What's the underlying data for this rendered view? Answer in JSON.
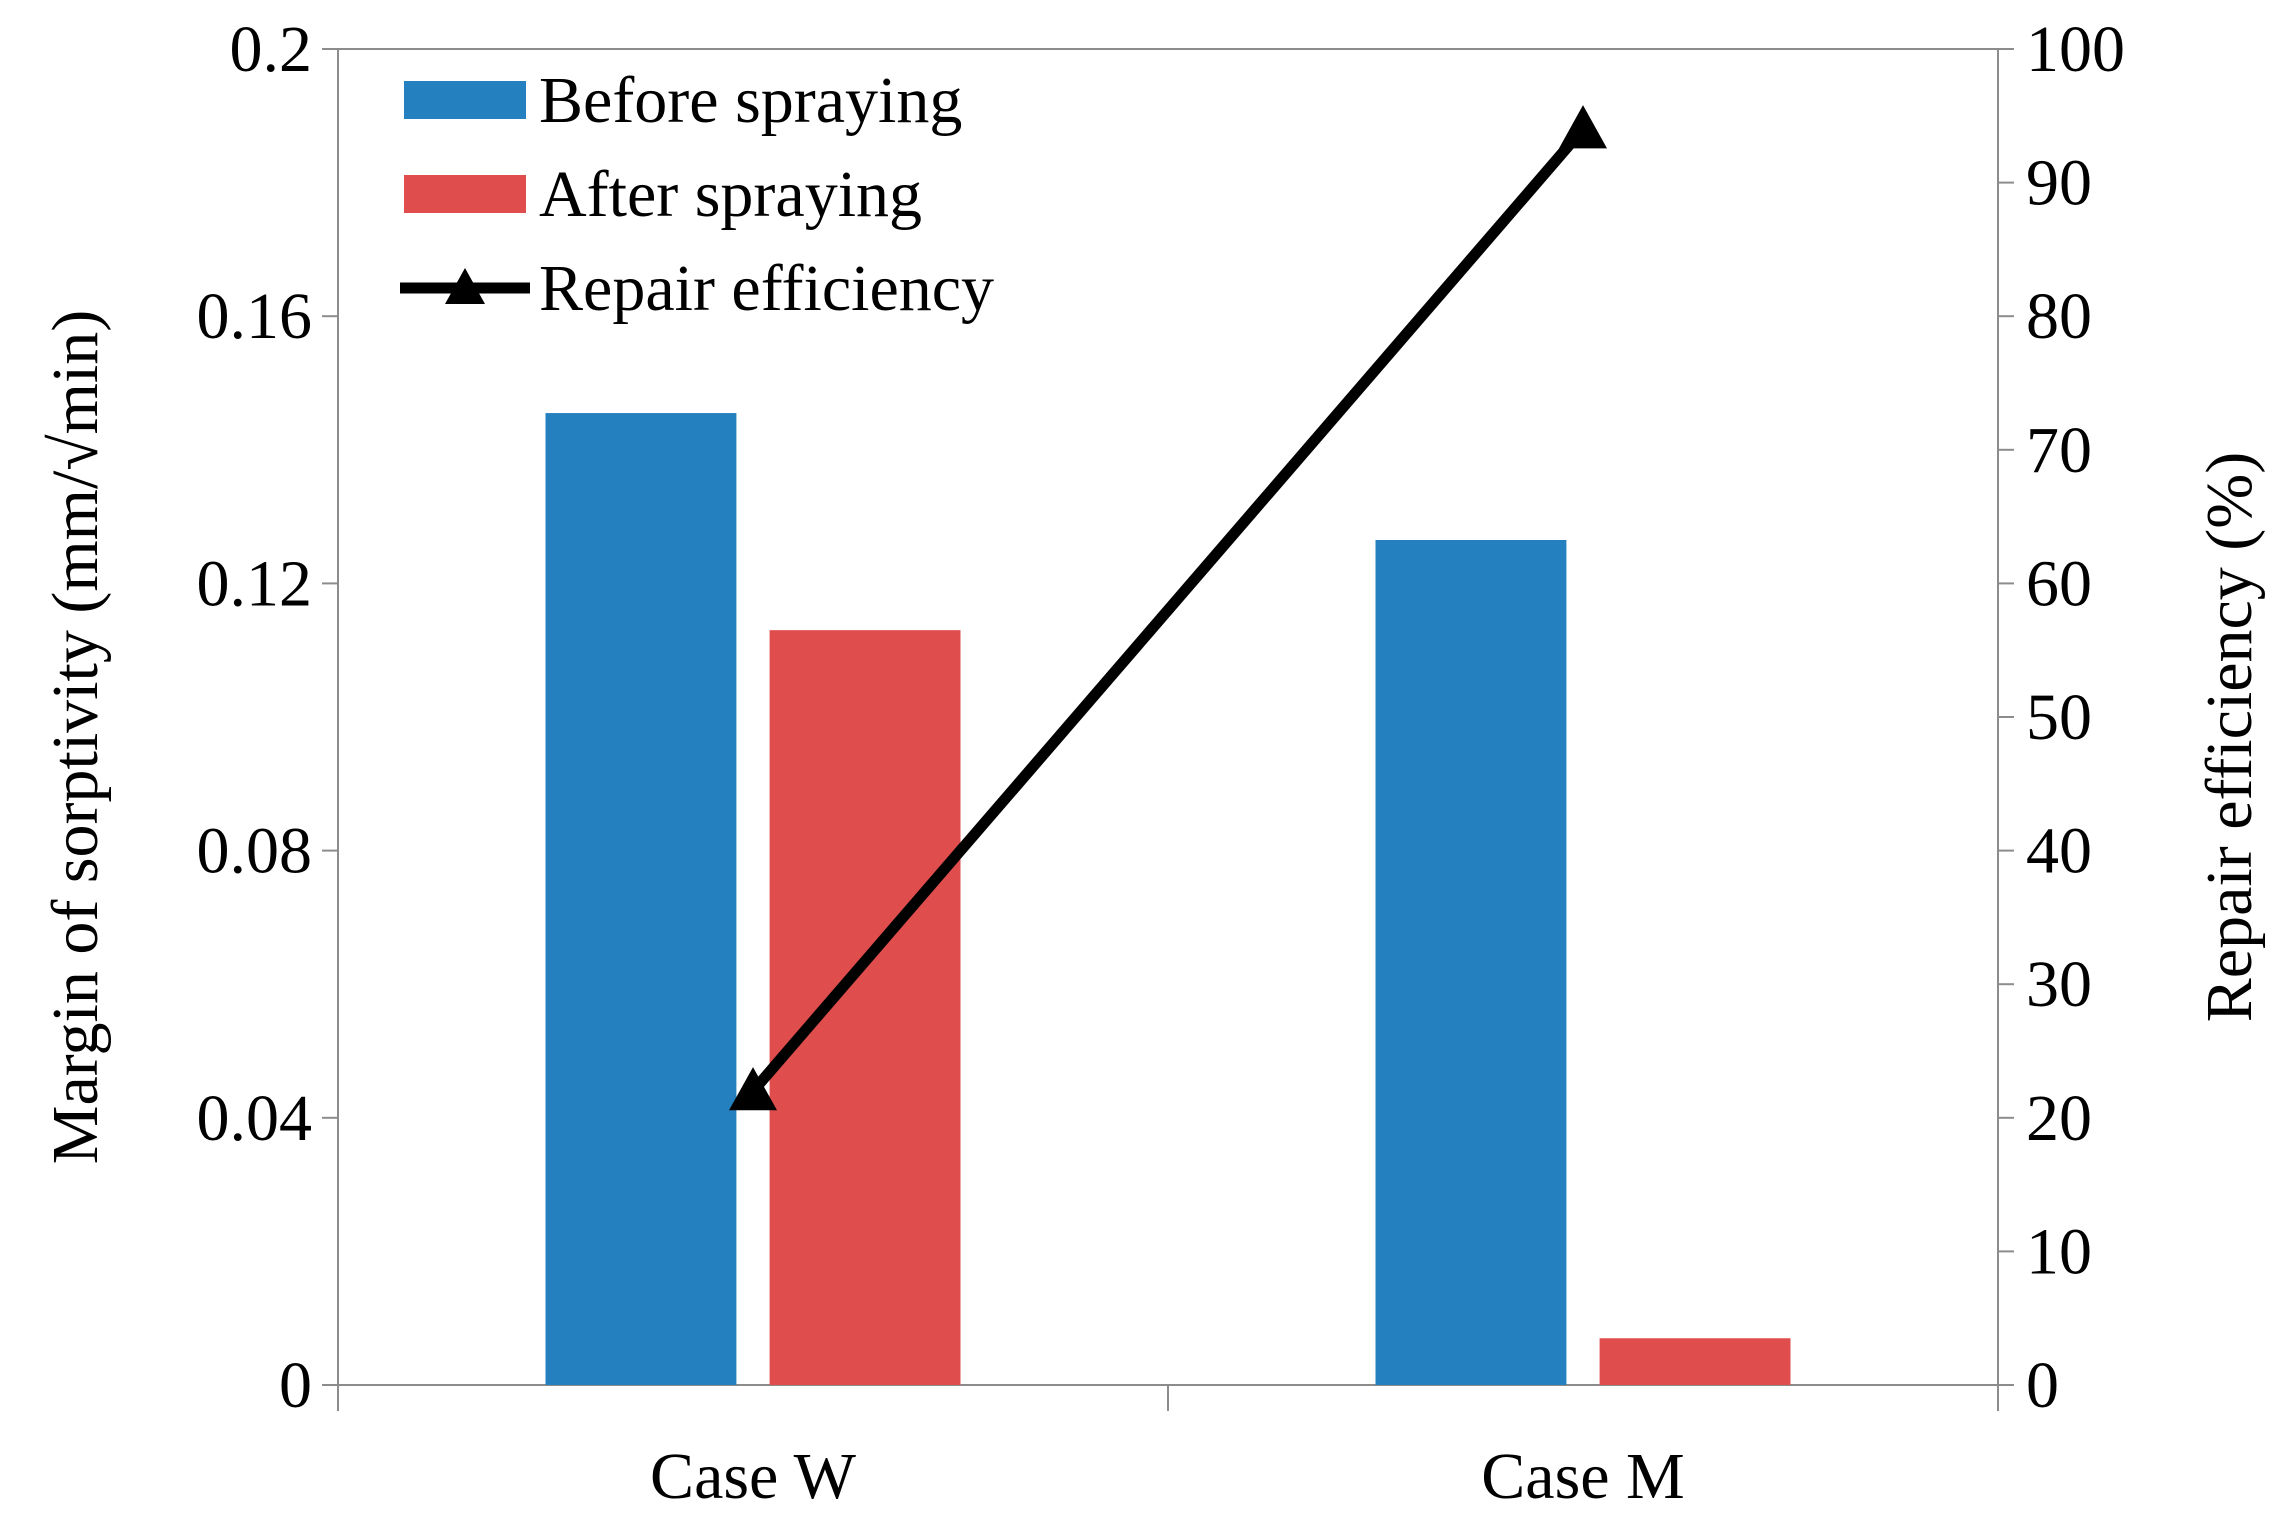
{
  "chart_data": {
    "type": "bar",
    "categories": [
      "Case W",
      "Case M"
    ],
    "series": [
      {
        "name": "Before spraying",
        "kind": "bar",
        "axis": "left",
        "color": "#2580BF",
        "values": [
          0.1455,
          0.1265
        ]
      },
      {
        "name": "After spraying",
        "kind": "bar",
        "axis": "left",
        "color": "#DF4D4D",
        "values": [
          0.113,
          0.007
        ]
      },
      {
        "name": "Repair efficiency",
        "kind": "line",
        "marker": "triangle",
        "axis": "right",
        "color": "#000000",
        "values": [
          22,
          94
        ]
      }
    ],
    "ylabel": "Margin of sorptivity (mm/√min)",
    "y2label": "Repair efficiency (%)",
    "ylim": [
      0,
      0.2
    ],
    "y2lim": [
      0,
      100
    ],
    "yticks": [
      "0",
      "0.04",
      "0.08",
      "0.12",
      "0.16",
      "0.2"
    ],
    "y2ticks": [
      "0",
      "10",
      "20",
      "30",
      "40",
      "50",
      "60",
      "70",
      "80",
      "90",
      "100"
    ],
    "legend_position": "top-left",
    "grid": false
  }
}
